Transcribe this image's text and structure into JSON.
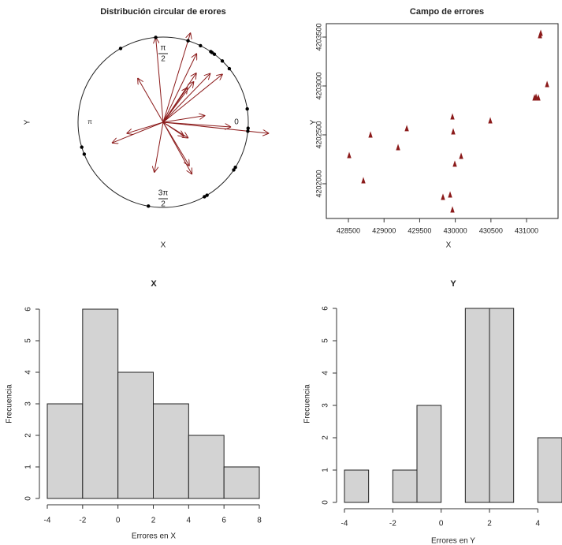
{
  "chart_data": [
    {
      "type": "circular",
      "title": "Distribución circular de erores",
      "xlabel": "X",
      "ylabel": "Y",
      "angle_labels": {
        "top": [
          "π",
          "2"
        ],
        "left": "π",
        "right": "0",
        "bottom": [
          "3π",
          "2"
        ]
      },
      "angles": [
        95,
        120,
        73,
        64,
        56,
        55,
        53,
        46,
        39,
        9,
        356,
        354,
        328,
        326,
        299,
        301,
        260,
        197,
        202
      ],
      "lengths": [
        1.0,
        0.6,
        1.1,
        0.9,
        0.7,
        0.5,
        0.6,
        0.8,
        0.9,
        0.5,
        0.8,
        1.25,
        0.35,
        0.3,
        0.7,
        0.6,
        0.6,
        0.45,
        0.65
      ],
      "color": "#8b1a1a"
    },
    {
      "type": "scatter",
      "title": "Campo de errores",
      "xlabel": "X",
      "ylabel": "Y",
      "x": [
        428511,
        428710,
        428810,
        429197,
        429319,
        429960,
        429971,
        429993,
        430082,
        429827,
        429927,
        429960,
        430491,
        431111,
        431133,
        431166,
        431188,
        431199,
        431288
      ],
      "y": [
        4202290,
        4202032,
        4202500,
        4202371,
        4202565,
        4202685,
        4202532,
        4202202,
        4202282,
        4201863,
        4201887,
        4201734,
        4202645,
        4202879,
        4202887,
        4202879,
        4203516,
        4203540,
        4203016
      ],
      "xlim": [
        428190,
        431442
      ],
      "ylim": [
        4201645,
        4203637
      ],
      "xticks": [
        428500,
        429000,
        429500,
        430000,
        430500,
        431000
      ],
      "yticks": [
        4202000,
        4202500,
        4203000,
        4203500
      ],
      "color": "#8b1a1a"
    },
    {
      "type": "histogram",
      "title": "X",
      "xlabel": "Errores en  X",
      "ylabel": "Frecuencia",
      "bins": [
        -4,
        -2,
        0,
        2,
        4,
        6,
        8
      ],
      "counts": [
        3,
        6,
        4,
        3,
        2,
        1
      ],
      "xlim": [
        -4,
        8
      ],
      "ylim": [
        0,
        6
      ],
      "xticks": [
        -4,
        -2,
        0,
        2,
        4,
        6,
        8
      ],
      "yticks": [
        0,
        1,
        2,
        3,
        4,
        5,
        6
      ],
      "color": "#d3d3d3"
    },
    {
      "type": "histogram",
      "title": "Y",
      "xlabel": "Errores en  Y",
      "ylabel": "Frecuencia",
      "bins": [
        -4,
        -3,
        -2,
        -1,
        0,
        1,
        2,
        3,
        4,
        5
      ],
      "counts": [
        1,
        0,
        1,
        3,
        0,
        6,
        6,
        0,
        2
      ],
      "xlim": [
        -4,
        5
      ],
      "ylim": [
        0,
        6
      ],
      "xticks": [
        -4,
        -2,
        0,
        2,
        4
      ],
      "yticks": [
        0,
        1,
        2,
        3,
        4,
        5,
        6
      ],
      "color": "#d3d3d3"
    }
  ]
}
